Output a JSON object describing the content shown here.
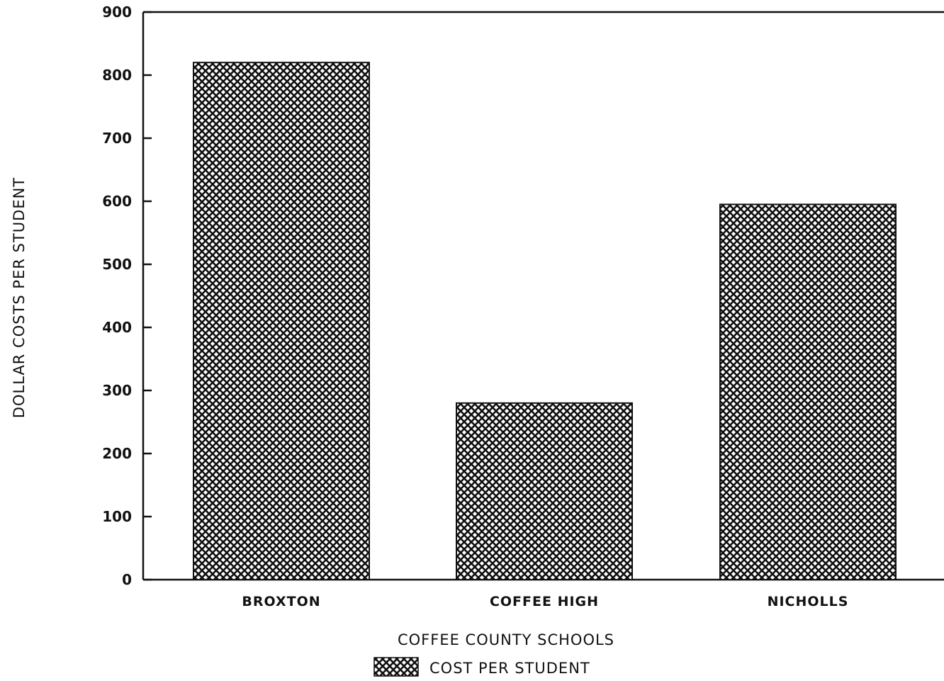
{
  "chart_data": {
    "type": "bar",
    "categories": [
      "BROXTON",
      "COFFEE HIGH",
      "NICHOLLS"
    ],
    "series": [
      {
        "name": "COST PER STUDENT",
        "values": [
          820,
          280,
          595
        ]
      }
    ],
    "title": "",
    "xlabel": "COFFEE COUNTY SCHOOLS",
    "ylabel": "DOLLAR COSTS PER STUDENT",
    "ylim": [
      0,
      900
    ],
    "yticks": [
      "0",
      "100",
      "200",
      "300",
      "400",
      "500",
      "600",
      "700",
      "800",
      "900"
    ],
    "grid": false,
    "legend": {
      "position": "bottom-center"
    },
    "bar_pattern": "crosshatch",
    "colors": {
      "ink": "#111111",
      "background": "#ffffff"
    }
  }
}
